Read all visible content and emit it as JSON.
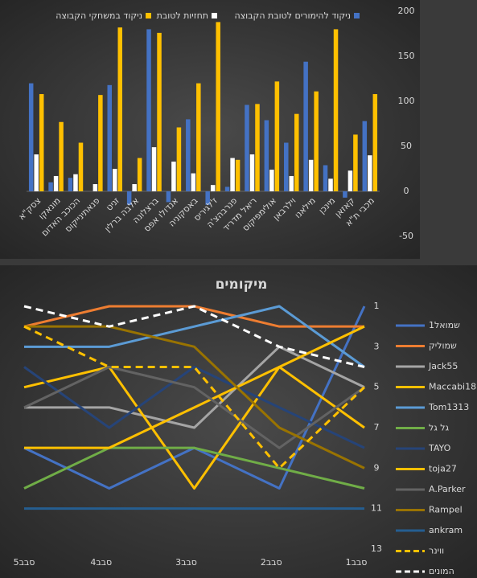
{
  "chart_data": [
    {
      "type": "bar",
      "categories": [
        "צסק\"א",
        "מונאקו",
        "הכוכב האדום",
        "פנאתינייקוס",
        "זניט",
        "אלבה ברלין",
        "ברצלונה",
        "אנדולו אפס",
        "באסקוניה",
        "ז'לגיריס",
        "פנרבהצ'ה",
        "ריאל מדריד",
        "אולימפיקוס",
        "וילרבאן",
        "מילאנו",
        "מינכן",
        "קאזאן",
        "מכבי ת\"א"
      ],
      "series": [
        {
          "name": "ניקוד להימורים לטובת הקבוצה",
          "color": "#4472c4",
          "values": [
            120,
            10,
            15,
            0,
            118,
            -15,
            180,
            -12,
            80,
            -15,
            5,
            96,
            79,
            54,
            144,
            29,
            -7,
            78
          ]
        },
        {
          "name": "תחזיות לטובת",
          "color": "#ffffff",
          "values": [
            41,
            17,
            19,
            8,
            25,
            8,
            49,
            33,
            20,
            7,
            37,
            41,
            24,
            17,
            35,
            14,
            23,
            40
          ]
        },
        {
          "name": "ניקוד במשחקי הקבוצה",
          "color": "#ffc000",
          "values": [
            108,
            77,
            54,
            107,
            182,
            37,
            176,
            71,
            120,
            188,
            35,
            97,
            122,
            86,
            111,
            180,
            63,
            108
          ]
        }
      ],
      "ylim": [
        -50,
        200
      ],
      "yticks": [
        -50,
        0,
        50,
        100,
        150,
        200
      ],
      "grid": false,
      "legend": "top"
    },
    {
      "type": "line",
      "title": "מיקומים",
      "categories": [
        "סבב5",
        "סבב4",
        "סבב3",
        "סבב2",
        "סבב1"
      ],
      "series": [
        {
          "name": "שמואל1",
          "color": "#4472c4",
          "values": [
            8,
            10,
            8,
            10,
            1
          ]
        },
        {
          "name": "שמוליק",
          "color": "#ed7d31",
          "values": [
            2,
            1,
            1,
            2,
            2
          ]
        },
        {
          "name": "Jack55",
          "color": "#a5a5a5",
          "values": [
            6,
            6,
            7,
            3,
            5
          ]
        },
        {
          "name": "Maccabi18",
          "color": "#ffc000",
          "values": [
            5,
            4,
            10,
            4,
            7
          ]
        },
        {
          "name": "Tom1313",
          "color": "#5b9bd5",
          "values": [
            3,
            3,
            2,
            1,
            4
          ]
        },
        {
          "name": "גל גל",
          "color": "#70ad47",
          "values": [
            10,
            8,
            8,
            9,
            10
          ]
        },
        {
          "name": "TAYO",
          "color": "#264478",
          "values": [
            4,
            7,
            4,
            6,
            8
          ]
        },
        {
          "name": "toja27",
          "color": "#ffc000",
          "values": [
            8,
            8,
            6,
            4,
            2
          ]
        },
        {
          "name": "A.Parker",
          "color": "#636363",
          "values": [
            6,
            4,
            5,
            8,
            5
          ]
        },
        {
          "name": "Rampel",
          "color": "#997300",
          "values": [
            2,
            2,
            3,
            7,
            9
          ]
        },
        {
          "name": "ankram",
          "color": "#255e91",
          "values": [
            11,
            11,
            11,
            11,
            11
          ]
        },
        {
          "name": "ווינר",
          "color": "#ffc000",
          "dashed": true,
          "values": [
            2,
            4,
            4,
            9,
            5
          ]
        },
        {
          "name": "המונים",
          "color": "#ffffff",
          "dashed": true,
          "values": [
            1,
            2,
            1,
            3,
            4
          ]
        }
      ],
      "ylim": [
        13,
        1
      ],
      "yticks": [
        1,
        3,
        5,
        7,
        9,
        11,
        13
      ],
      "grid": false,
      "legend": "right"
    }
  ]
}
